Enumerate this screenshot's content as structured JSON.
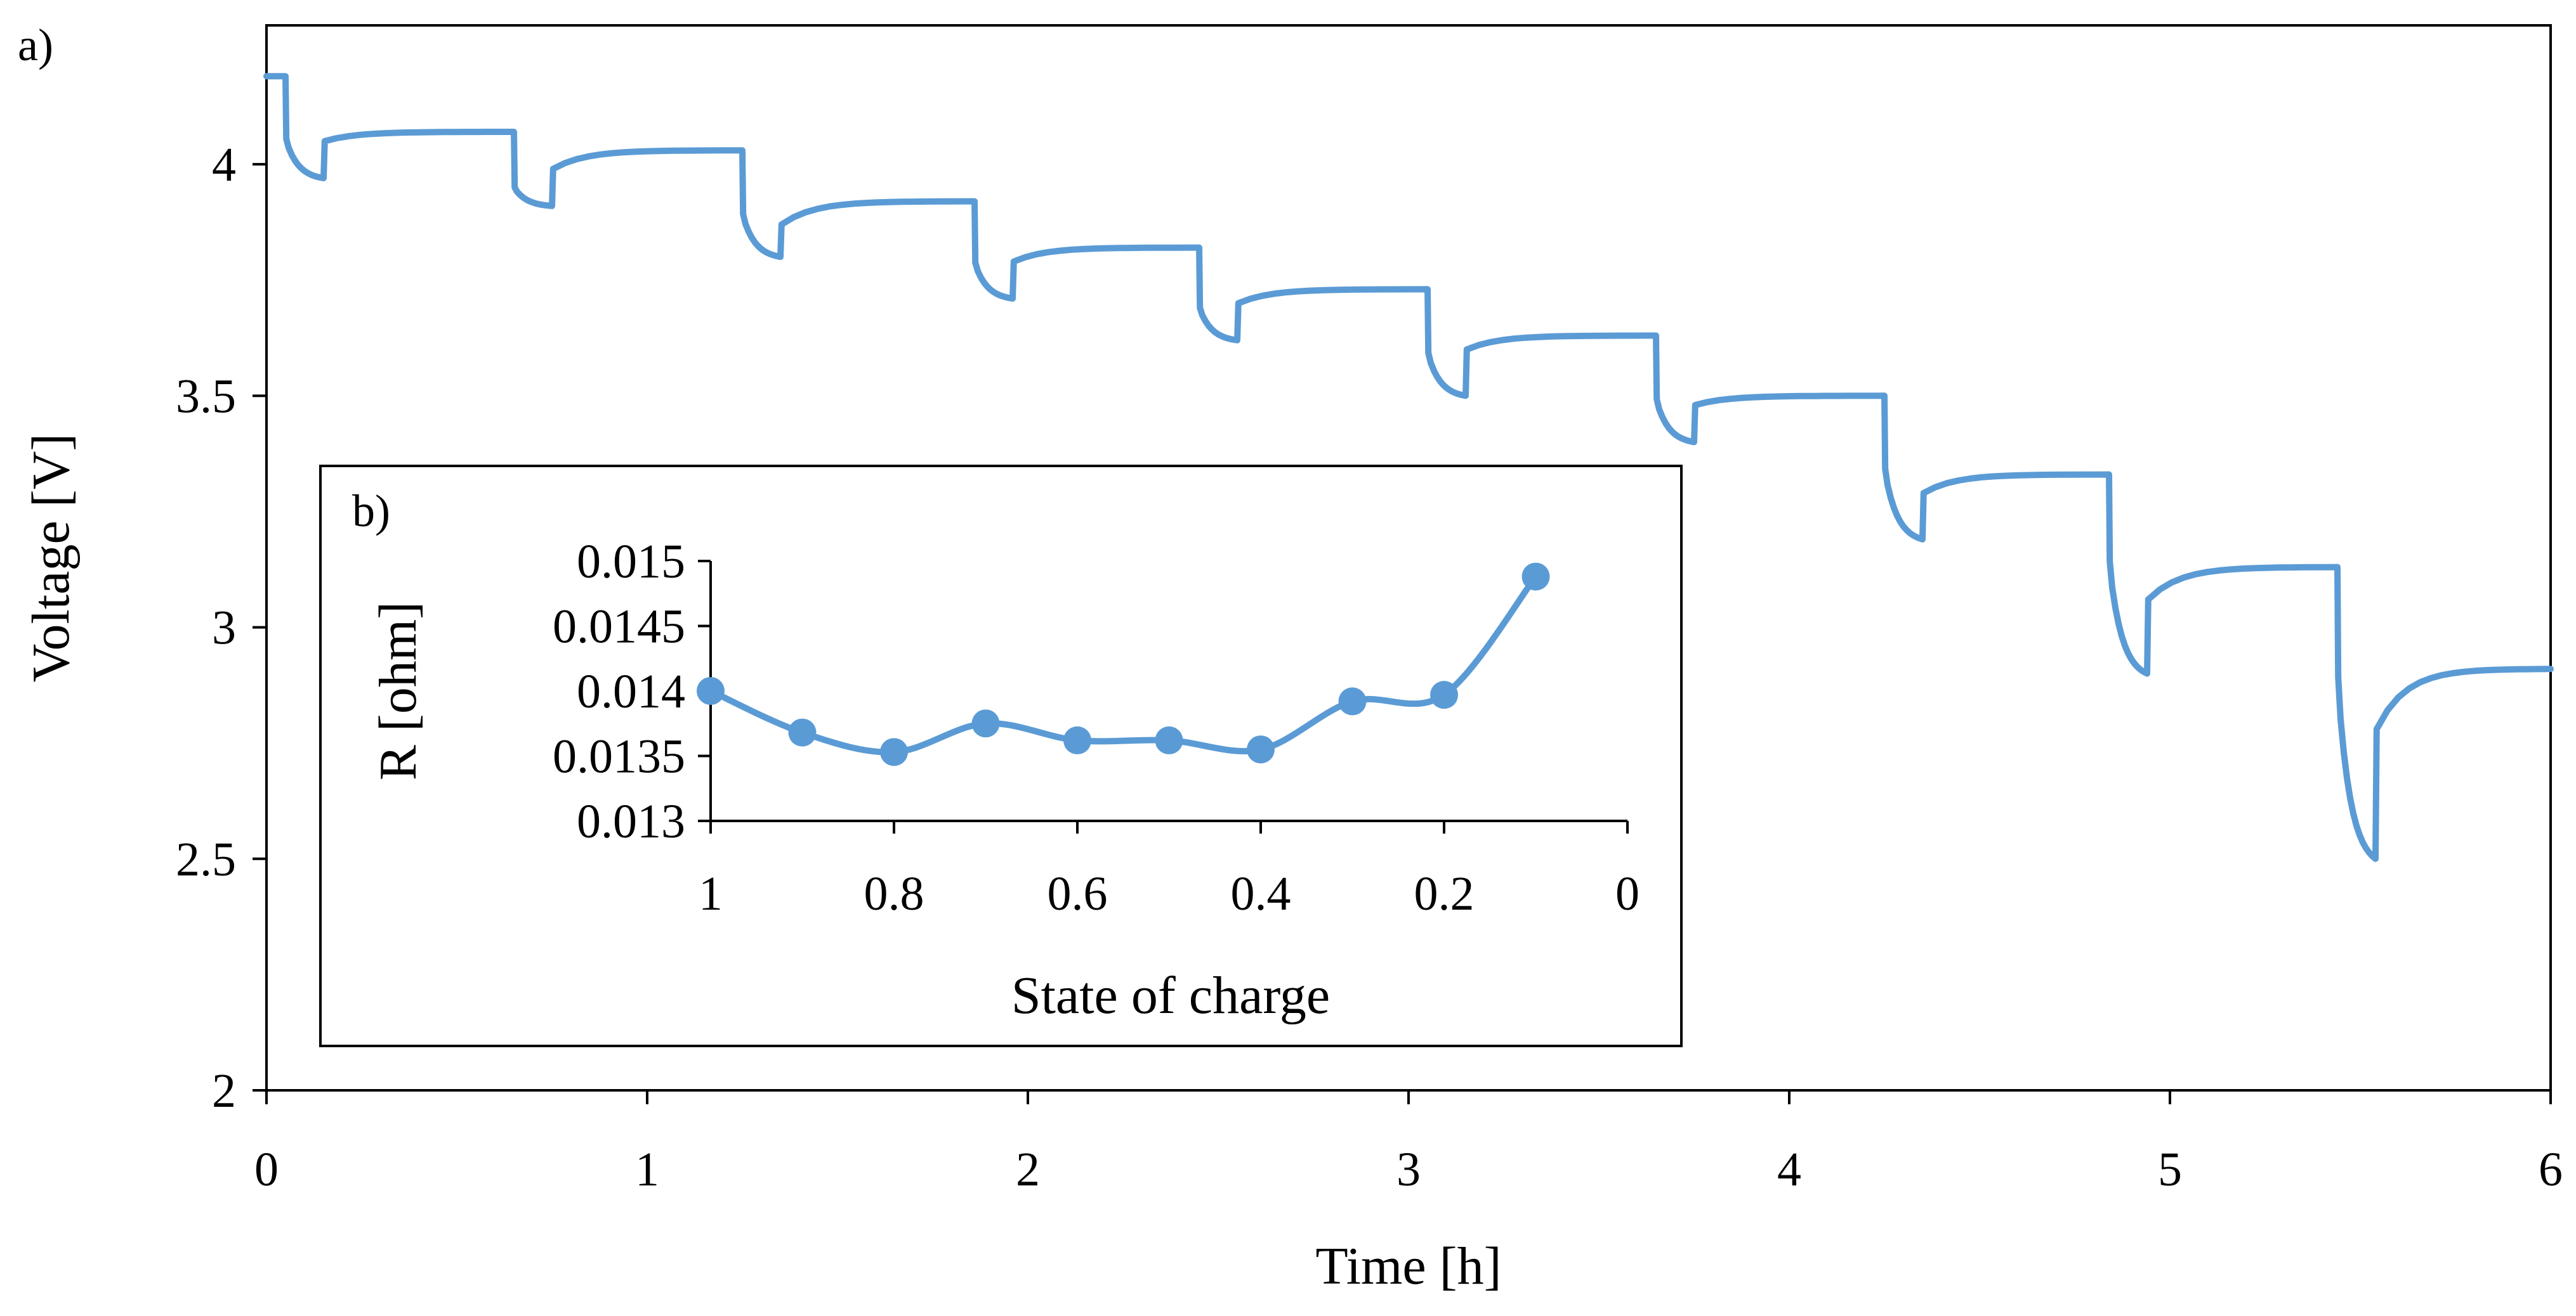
{
  "chart_data": [
    {
      "panel": "a)",
      "type": "line",
      "title": "",
      "xlabel": "Time [h]",
      "ylabel": "Voltage [V]",
      "xlim": [
        0,
        6
      ],
      "ylim": [
        2,
        4.3
      ],
      "xticks": [
        "0",
        "1",
        "2",
        "3",
        "4",
        "5",
        "6"
      ],
      "yticks": [
        "2",
        "2.5",
        "3",
        "3.5",
        "4"
      ],
      "color": "#5b9bd5",
      "grid": false,
      "pulses": [
        {
          "start": 0.05,
          "rest": 4.19,
          "end_drop": 3.97
        },
        {
          "start": 0.65,
          "rest": 4.07,
          "end_drop": 3.91
        },
        {
          "start": 1.25,
          "rest": 4.03,
          "end_drop": 3.8
        },
        {
          "start": 1.86,
          "rest": 3.92,
          "end_drop": 3.71
        },
        {
          "start": 2.45,
          "rest": 3.82,
          "end_drop": 3.62
        },
        {
          "start": 3.05,
          "rest": 3.73,
          "end_drop": 3.5
        },
        {
          "start": 3.65,
          "rest": 3.63,
          "end_drop": 3.4
        },
        {
          "start": 4.25,
          "rest": 3.5,
          "end_drop": 3.19
        },
        {
          "start": 4.84,
          "rest": 3.33,
          "end_drop": 2.9
        },
        {
          "start": 5.44,
          "rest": 3.13,
          "end_drop": 2.5
        }
      ],
      "recovery": [
        {
          "jump": 4.05,
          "settle": 4.07
        },
        {
          "jump": 3.99,
          "settle": 4.03
        },
        {
          "jump": 3.87,
          "settle": 3.92
        },
        {
          "jump": 3.79,
          "settle": 3.82
        },
        {
          "jump": 3.7,
          "settle": 3.73
        },
        {
          "jump": 3.6,
          "settle": 3.63
        },
        {
          "jump": 3.48,
          "settle": 3.5
        },
        {
          "jump": 3.29,
          "settle": 3.33
        },
        {
          "jump": 3.06,
          "settle": 3.13
        },
        {
          "jump": 2.78,
          "settle": 2.91
        }
      ]
    },
    {
      "panel": "b)",
      "type": "line",
      "title": "",
      "xlabel": "State of charge",
      "ylabel": "R [ohm]",
      "xlim": [
        1,
        0
      ],
      "ylim": [
        0.013,
        0.015
      ],
      "xticks": [
        "1",
        "0.8",
        "0.6",
        "0.4",
        "0.2",
        "0"
      ],
      "yticks": [
        "0.015",
        "0.0145",
        "0.014",
        "0.0135",
        "0.013"
      ],
      "color": "#5b9bd5",
      "grid": false,
      "x": [
        1.0,
        0.9,
        0.8,
        0.7,
        0.6,
        0.5,
        0.4,
        0.3,
        0.2,
        0.1
      ],
      "y": [
        0.014,
        0.01368,
        0.01353,
        0.01375,
        0.01362,
        0.01362,
        0.01355,
        0.01392,
        0.01397,
        0.01488
      ]
    }
  ]
}
